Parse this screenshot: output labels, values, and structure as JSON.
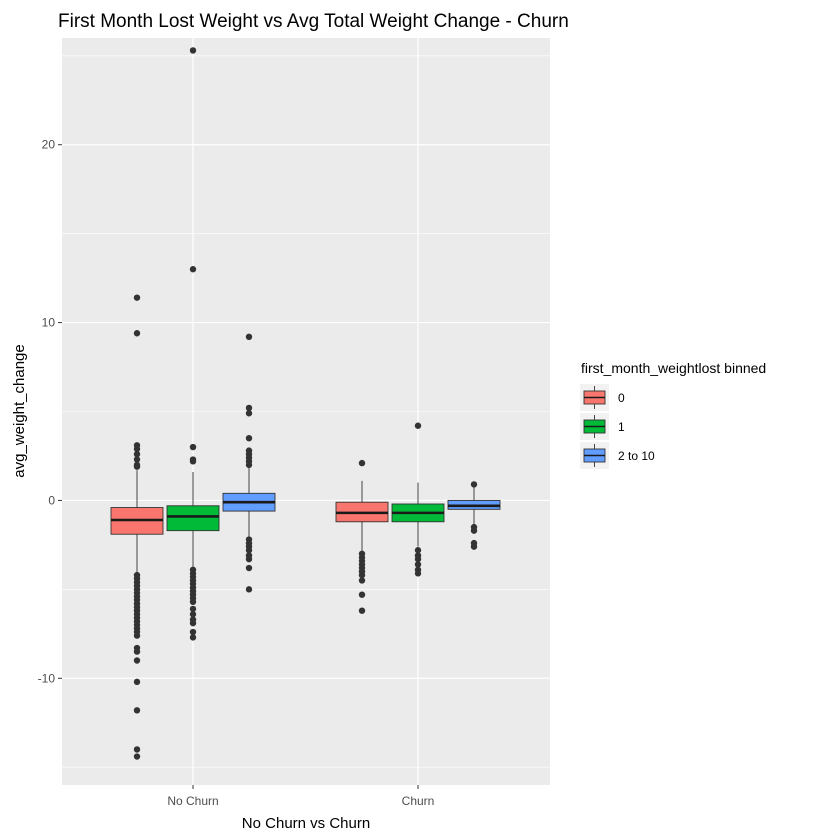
{
  "chart_data": {
    "type": "boxplot",
    "title": "First Month Lost Weight vs Avg Total Weight Change - Churn",
    "xlabel": "No Churn vs Churn",
    "ylabel": "avg_weight_change",
    "categories": [
      "No Churn",
      "Churn"
    ],
    "ylim": [
      -16,
      26
    ],
    "yticks": [
      -10,
      0,
      10,
      20
    ],
    "grid": true,
    "legend": {
      "title": "first_month_weightlost binned",
      "position": "right",
      "entries": [
        "0",
        "1",
        "2 to 10"
      ]
    },
    "series": [
      {
        "name": "0",
        "color": "#F8766D",
        "boxes": [
          {
            "category": "No Churn",
            "q1": -1.9,
            "median": -1.1,
            "q3": -0.4,
            "whisker_low": -4.1,
            "whisker_high": 1.7,
            "outliers": [
              11.4,
              9.4,
              3.1,
              2.9,
              2.6,
              2.3,
              2.0,
              1.9,
              -4.2,
              -4.4,
              -4.6,
              -4.8,
              -5.0,
              -5.2,
              -5.4,
              -5.6,
              -5.8,
              -6.0,
              -6.2,
              -6.4,
              -6.6,
              -6.8,
              -7.0,
              -7.2,
              -7.4,
              -7.6,
              -8.3,
              -8.5,
              -9.0,
              -10.2,
              -11.8,
              -14.0,
              -14.4
            ]
          },
          {
            "category": "Churn",
            "q1": -1.2,
            "median": -0.7,
            "q3": -0.1,
            "whisker_low": -2.9,
            "whisker_high": 1.1,
            "outliers": [
              2.1,
              -3.0,
              -3.2,
              -3.4,
              -3.6,
              -3.8,
              -4.0,
              -4.2,
              -4.5,
              -5.3,
              -6.2
            ]
          }
        ]
      },
      {
        "name": "1",
        "color": "#00BA38",
        "boxes": [
          {
            "category": "No Churn",
            "q1": -1.7,
            "median": -0.9,
            "q3": -0.3,
            "whisker_low": -3.8,
            "whisker_high": 1.6,
            "outliers": [
              13.0,
              25.3,
              3.0,
              2.3,
              2.2,
              -3.9,
              -4.1,
              -4.3,
              -4.5,
              -4.7,
              -4.9,
              -5.1,
              -5.3,
              -5.5,
              -5.7,
              -6.1,
              -6.4,
              -6.7,
              -6.9,
              -7.4,
              -7.7
            ]
          },
          {
            "category": "Churn",
            "q1": -1.2,
            "median": -0.7,
            "q3": -0.2,
            "whisker_low": -2.6,
            "whisker_high": 1.0,
            "outliers": [
              4.2,
              -2.8,
              -3.1,
              -3.3,
              -3.6,
              -3.9,
              -4.1
            ]
          }
        ]
      },
      {
        "name": "2 to 10",
        "color": "#619CFF",
        "boxes": [
          {
            "category": "No Churn",
            "q1": -0.6,
            "median": -0.1,
            "q3": 0.4,
            "whisker_low": -2.1,
            "whisker_high": 1.9,
            "outliers": [
              9.2,
              5.2,
              4.9,
              3.5,
              2.8,
              2.6,
              2.4,
              2.2,
              2.0,
              -2.2,
              -2.4,
              -2.6,
              -2.8,
              -3.1,
              -3.3,
              -3.8,
              -5.0
            ]
          },
          {
            "category": "Churn",
            "q1": -0.5,
            "median": -0.3,
            "q3": 0.0,
            "whisker_low": -1.4,
            "whisker_high": 0.8,
            "outliers": [
              0.9,
              -1.5,
              -1.7,
              -2.4,
              -2.6
            ]
          }
        ]
      }
    ]
  }
}
